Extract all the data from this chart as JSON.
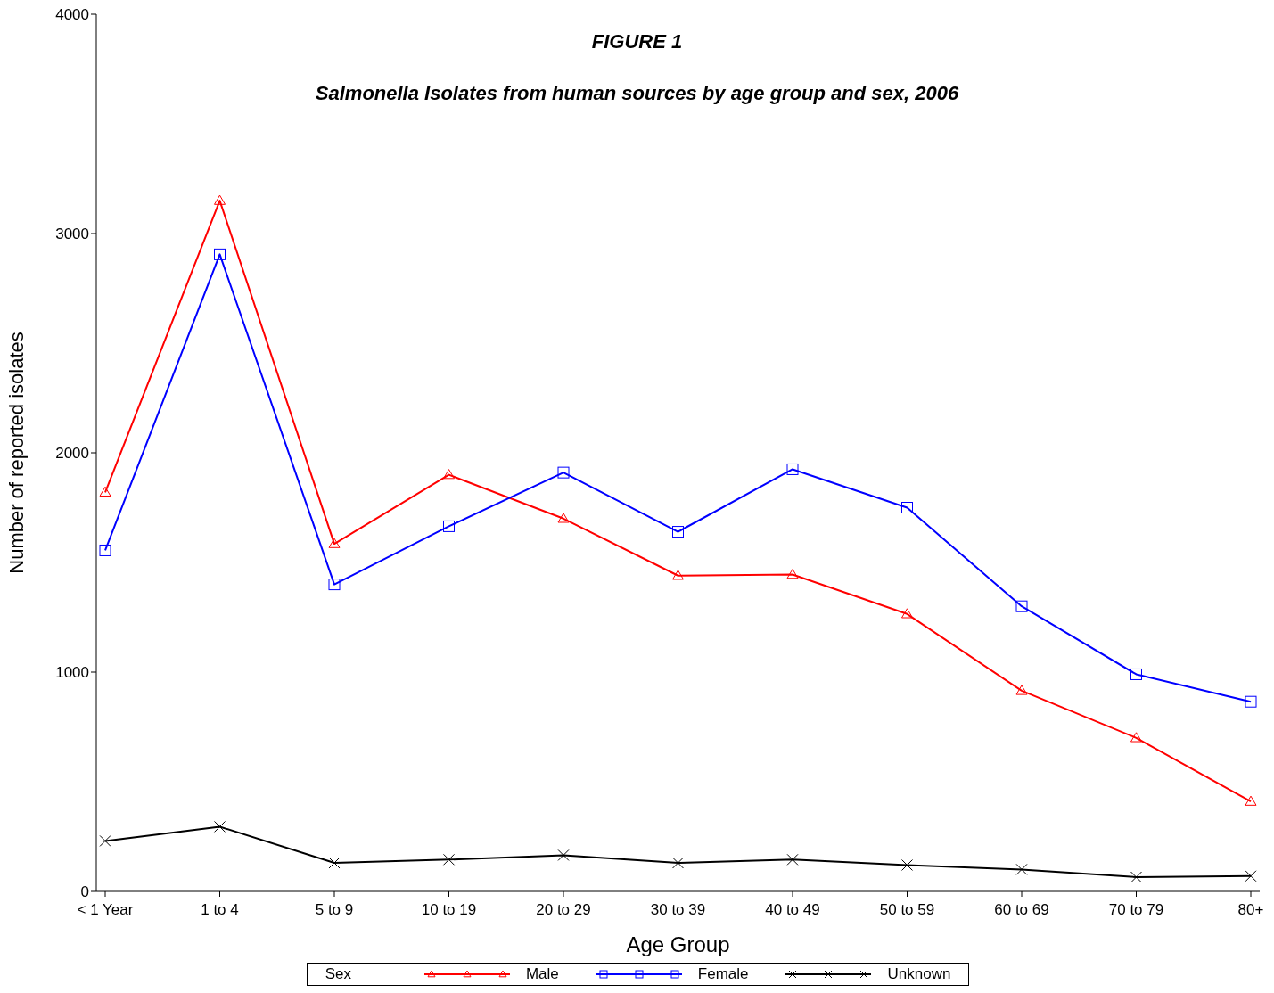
{
  "chart_data": {
    "type": "line",
    "title": "FIGURE 1",
    "subtitle": "Salmonella Isolates from human sources by age group and sex, 2006",
    "xlabel": "Age Group",
    "ylabel": "Number of reported isolates",
    "legend_title": "Sex",
    "categories": [
      "< 1 Year",
      "1 to 4",
      "5 to 9",
      "10 to 19",
      "20 to 29",
      "30 to 39",
      "40 to 49",
      "50 to 59",
      "60 to 69",
      "70 to 79",
      "80+"
    ],
    "series": [
      {
        "name": "Male",
        "color": "#ff0000",
        "marker": "triangle",
        "values": [
          1820,
          3150,
          1585,
          1900,
          1700,
          1440,
          1445,
          1265,
          915,
          700,
          410
        ]
      },
      {
        "name": "Female",
        "color": "#0000ff",
        "marker": "square",
        "values": [
          1555,
          2905,
          1400,
          1665,
          1910,
          1640,
          1925,
          1750,
          1300,
          990,
          865
        ]
      },
      {
        "name": "Unknown",
        "color": "#000000",
        "marker": "cross",
        "values": [
          230,
          295,
          130,
          145,
          165,
          130,
          145,
          120,
          100,
          65,
          70
        ]
      }
    ],
    "ylim": [
      0,
      4000
    ],
    "yticks": [
      0,
      1000,
      2000,
      3000,
      4000
    ],
    "grid": false,
    "legend": "bottom",
    "line_style": "solid"
  }
}
